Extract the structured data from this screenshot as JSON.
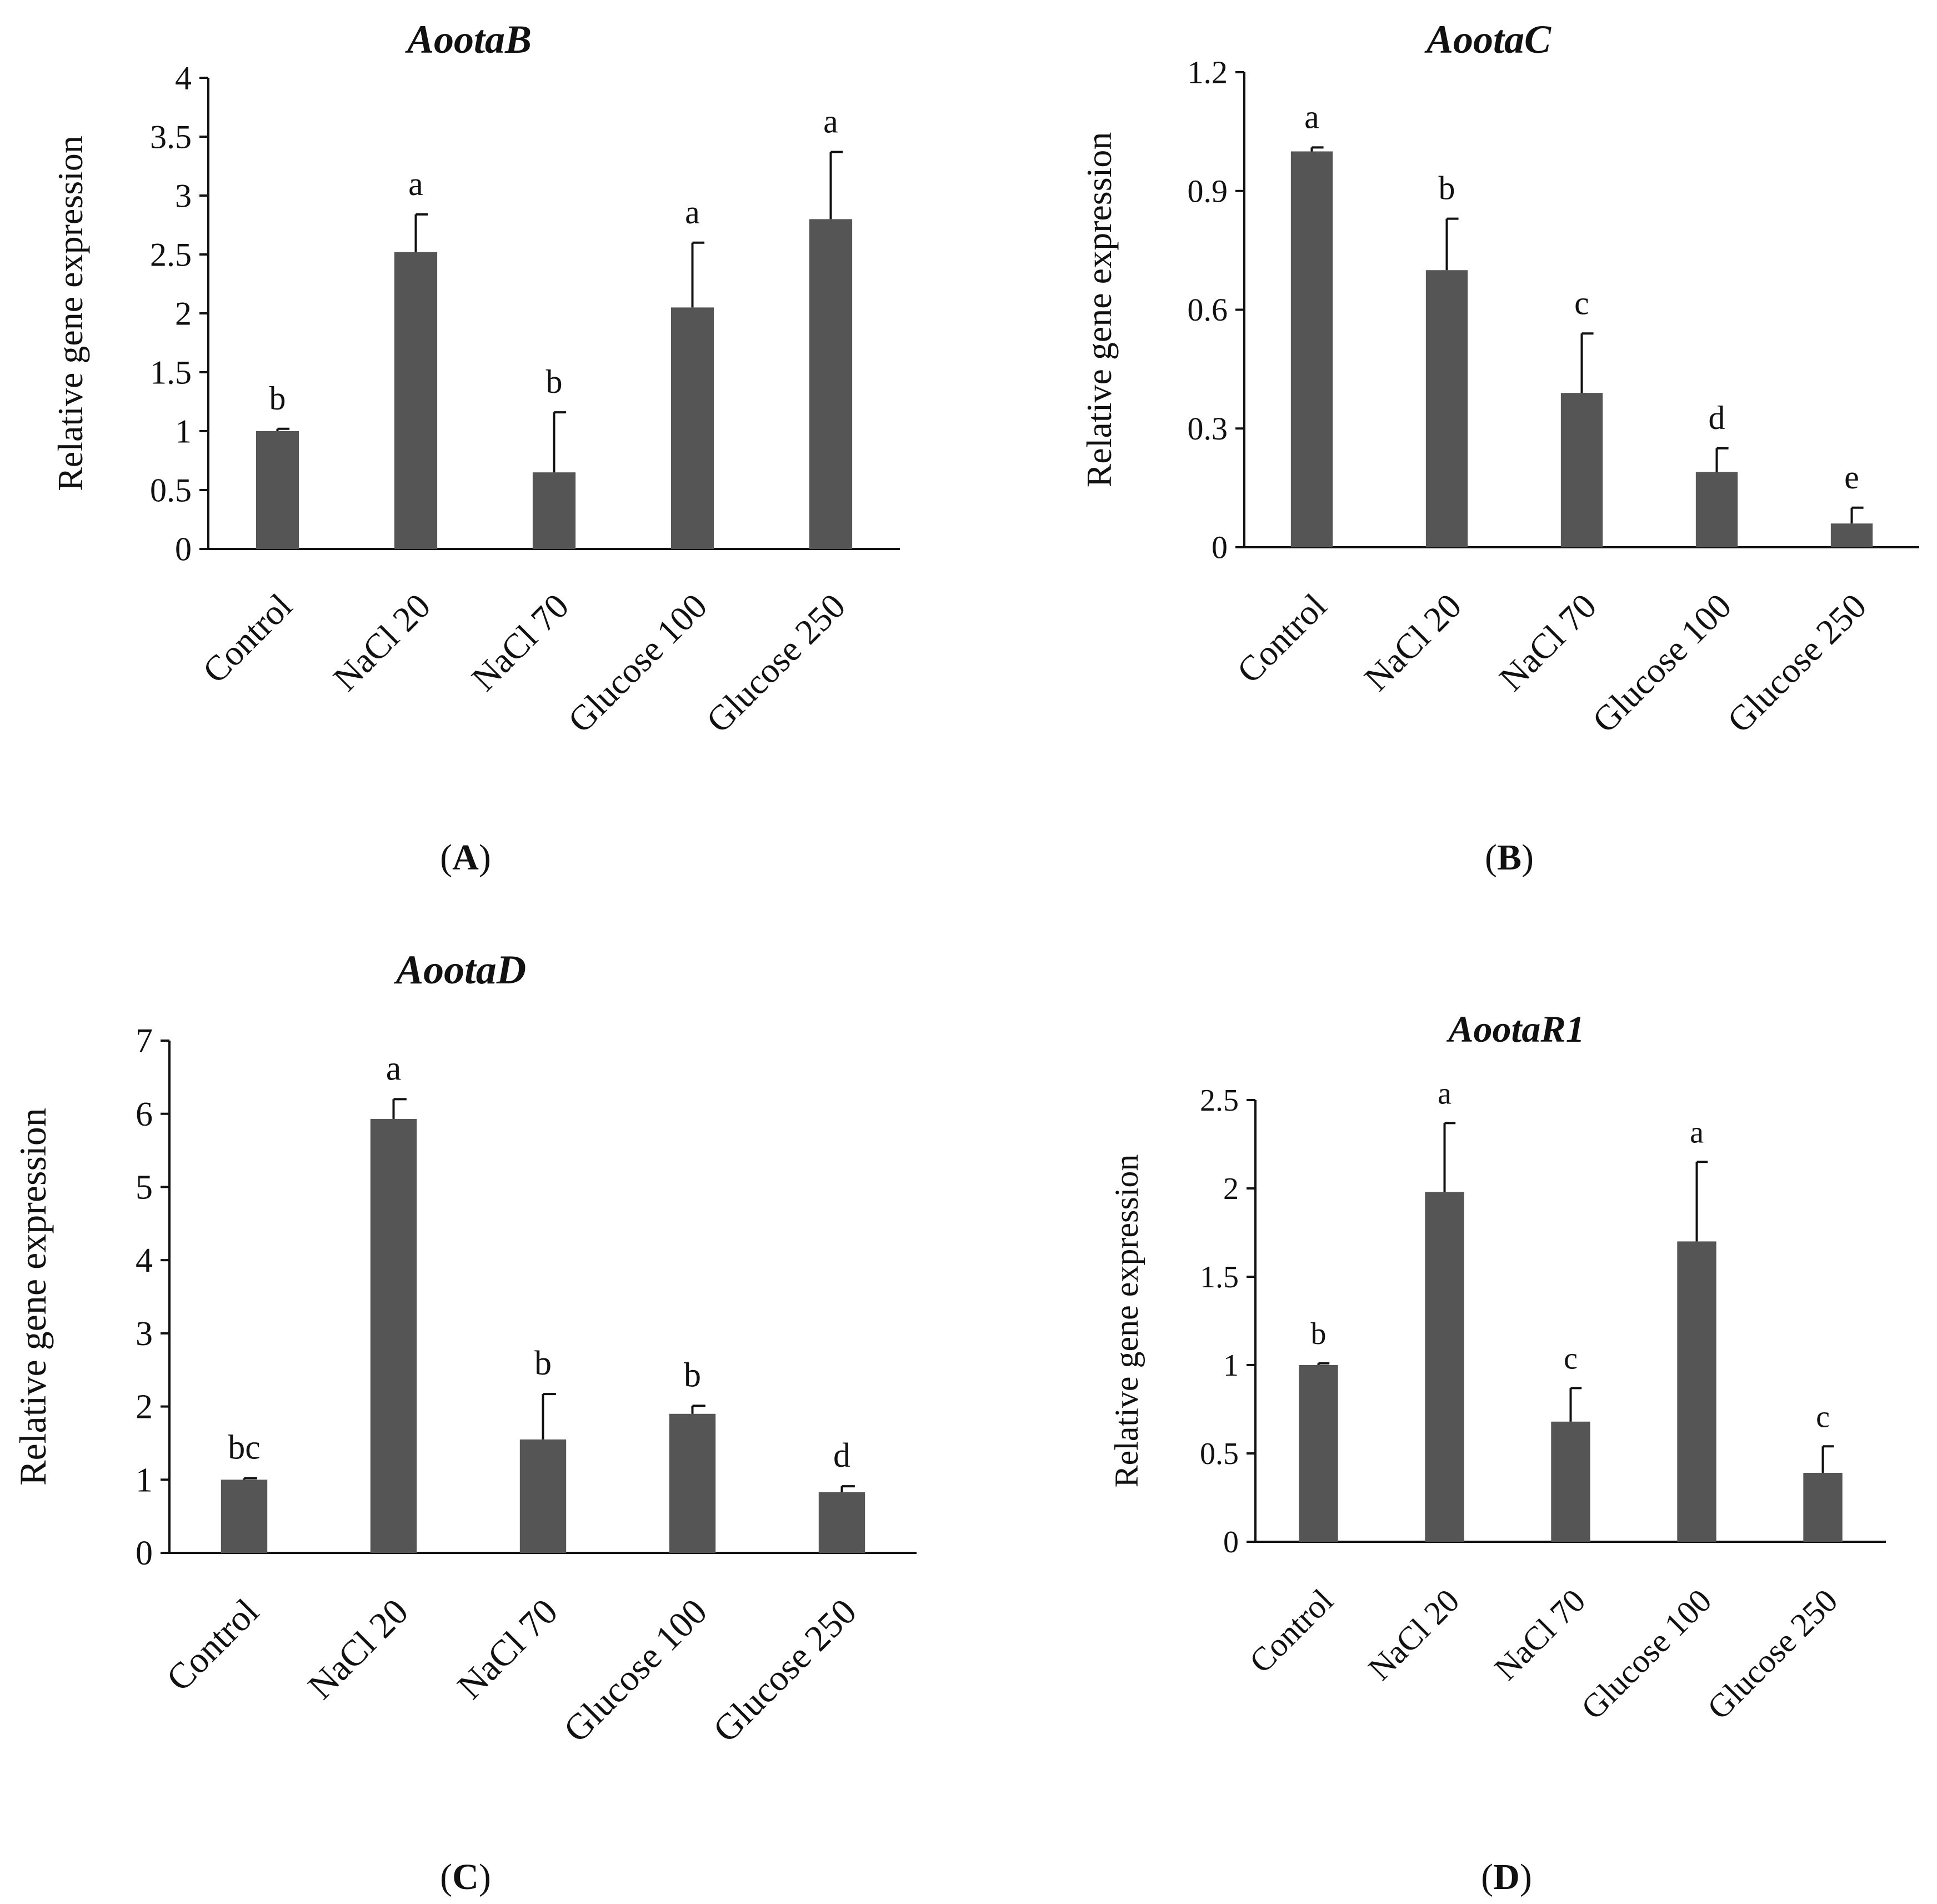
{
  "colors": {
    "bar": "#555555",
    "axis": "#111111",
    "text": "#111111"
  },
  "chart_data": [
    {
      "panel": "A",
      "panel_label": "(A)",
      "type": "bar",
      "title": "AootaB",
      "ylabel": "Relative gene expression",
      "xlabel": "",
      "categories": [
        "Control",
        "NaCl 20",
        "NaCl 70",
        "Glucose 100",
        "Glucose 250"
      ],
      "values": [
        1.0,
        2.52,
        0.65,
        2.05,
        2.8
      ],
      "errors": [
        0.02,
        0.32,
        0.51,
        0.55,
        0.57
      ],
      "significance": [
        "b",
        "a",
        "b",
        "a",
        "a"
      ],
      "ylim": [
        0,
        4
      ],
      "yticks": [
        "0",
        "0.5",
        "1",
        "1.5",
        "2",
        "2.5",
        "3",
        "3.5",
        "4"
      ]
    },
    {
      "panel": "B",
      "panel_label": "(B)",
      "type": "bar",
      "title": "AootaC",
      "ylabel": "Relative gene expression",
      "xlabel": "",
      "categories": [
        "Control",
        "NaCl 20",
        "NaCl 70",
        "Glucose 100",
        "Glucose 250"
      ],
      "values": [
        1.0,
        0.7,
        0.39,
        0.19,
        0.06
      ],
      "errors": [
        0.01,
        0.13,
        0.15,
        0.06,
        0.04
      ],
      "significance": [
        "a",
        "b",
        "c",
        "d",
        "e"
      ],
      "ylim": [
        0,
        1.2
      ],
      "yticks": [
        "0",
        "0.3",
        "0.6",
        "0.9",
        "1.2"
      ]
    },
    {
      "panel": "C",
      "panel_label": "(C)",
      "type": "bar",
      "title": "AootaD",
      "ylabel": "Relative gene expression",
      "xlabel": "",
      "categories": [
        "Control",
        "NaCl 20",
        "NaCl 70",
        "Glucose 100",
        "Glucose 250"
      ],
      "values": [
        1.0,
        5.93,
        1.55,
        1.9,
        0.83
      ],
      "errors": [
        0.02,
        0.27,
        0.62,
        0.11,
        0.08
      ],
      "significance": [
        "bc",
        "a",
        "b",
        "b",
        "d"
      ],
      "ylim": [
        0,
        7
      ],
      "yticks": [
        "0",
        "1",
        "2",
        "3",
        "4",
        "5",
        "6",
        "7"
      ]
    },
    {
      "panel": "D",
      "panel_label": "(D)",
      "type": "bar",
      "title": "AootaR1",
      "ylabel": "Relative gene expression",
      "xlabel": "",
      "categories": [
        "Control",
        "NaCl 20",
        "NaCl 70",
        "Glucose 100",
        "Glucose 250"
      ],
      "values": [
        1.0,
        1.98,
        0.68,
        1.7,
        0.39
      ],
      "errors": [
        0.01,
        0.39,
        0.19,
        0.45,
        0.15
      ],
      "significance": [
        "b",
        "a",
        "c",
        "a",
        "c"
      ],
      "ylim": [
        0,
        2.5
      ],
      "yticks": [
        "0",
        "0.5",
        "1",
        "1.5",
        "2",
        "2.5"
      ]
    }
  ]
}
